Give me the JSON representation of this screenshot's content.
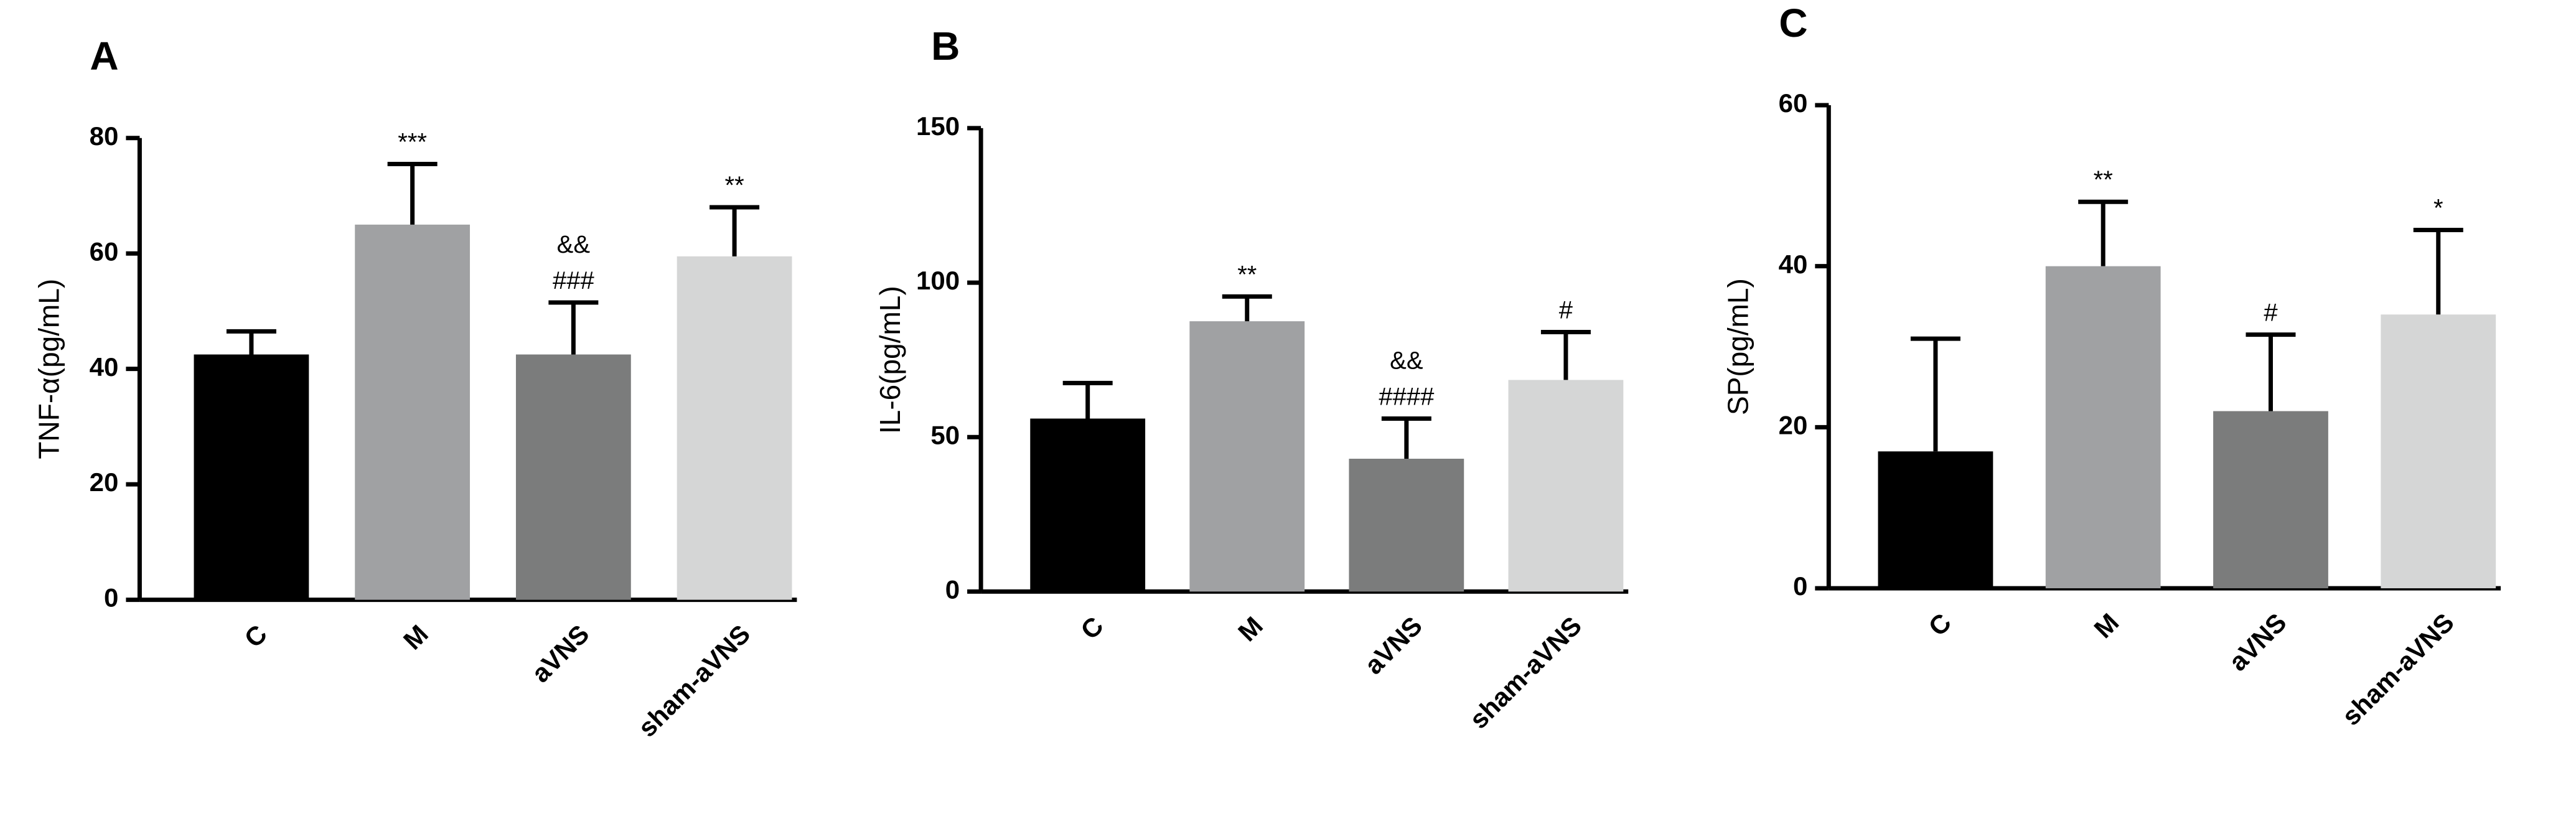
{
  "chart_data": [
    {
      "type": "bar",
      "panel": "A",
      "y_label": "TNF-α(pg/mL)",
      "categories": [
        "C",
        "M",
        "aVNS",
        "sham-aVNS"
      ],
      "values": [
        42.5,
        65,
        42.5,
        59.5
      ],
      "errors": [
        4,
        10.5,
        9,
        8.5
      ],
      "colors": [
        "#000000",
        "#a0a1a3",
        "#7b7c7c",
        "#d5d6d6"
      ],
      "annotations": [
        [],
        [
          "***"
        ],
        [
          "###",
          "&&"
        ],
        [
          "**"
        ]
      ],
      "ylim": [
        0,
        80
      ],
      "yticks": [
        0,
        20,
        40,
        60,
        80
      ]
    },
    {
      "type": "bar",
      "panel": "B",
      "y_label": "IL-6(pg/mL)",
      "categories": [
        "C",
        "M",
        "aVNS",
        "sham-aVNS"
      ],
      "values": [
        56,
        87.5,
        43,
        68.5
      ],
      "errors": [
        11.5,
        8,
        13,
        15.5
      ],
      "colors": [
        "#000000",
        "#a0a1a3",
        "#7b7c7c",
        "#d5d6d6"
      ],
      "annotations": [
        [],
        [
          "**"
        ],
        [
          "####",
          "&&"
        ],
        [
          "#"
        ]
      ],
      "ylim": [
        0,
        150
      ],
      "yticks": [
        0,
        50,
        100,
        150
      ]
    },
    {
      "type": "bar",
      "panel": "C",
      "y_label": "SP(pg/mL)",
      "categories": [
        "C",
        "M",
        "aVNS",
        "sham-aVNS"
      ],
      "values": [
        17,
        40,
        22,
        34
      ],
      "errors": [
        14,
        8,
        9.5,
        10.5
      ],
      "colors": [
        "#000000",
        "#a0a1a3",
        "#7b7c7c",
        "#d5d6d6"
      ],
      "annotations": [
        [],
        [
          "**"
        ],
        [
          "#"
        ],
        [
          "*"
        ]
      ],
      "ylim": [
        0,
        60
      ],
      "yticks": [
        0,
        20,
        40,
        60
      ]
    }
  ]
}
